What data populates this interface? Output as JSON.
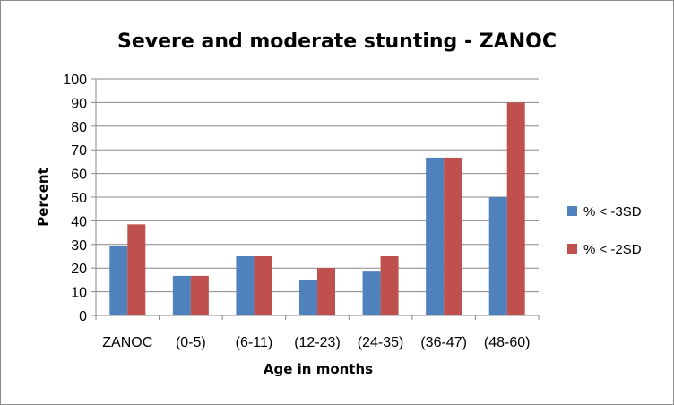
{
  "chart_data": {
    "type": "bar",
    "title": "Severe and moderate stunting - ZANOC",
    "xlabel": "Age in months",
    "ylabel": "Percent",
    "categories": [
      "ZANOC",
      "(0-5)",
      "(6-11)",
      "(12-23)",
      "(24-35)",
      "(36-47)",
      "(48-60)"
    ],
    "series": [
      {
        "name": "% < -3SD",
        "color": "#4f81bd",
        "values": [
          29.2,
          16.7,
          25.0,
          14.8,
          18.5,
          66.7,
          50.0
        ]
      },
      {
        "name": "% < -2SD",
        "color": "#c0504d",
        "values": [
          38.5,
          16.7,
          25.0,
          20.0,
          25.0,
          66.7,
          90.0
        ]
      }
    ],
    "ylim": [
      0,
      100
    ],
    "yticks": [
      0,
      10,
      20,
      30,
      40,
      50,
      60,
      70,
      80,
      90,
      100
    ],
    "grid": true,
    "legend_position": "right"
  }
}
